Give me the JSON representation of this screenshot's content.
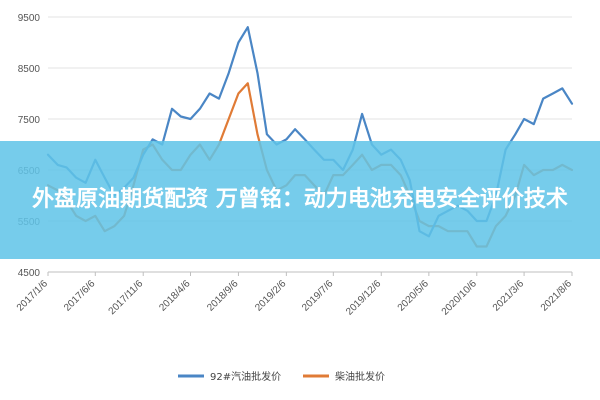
{
  "banner": {
    "title": "外盘原油期货配资 万曾铭：动力电池充电安全评价技术"
  },
  "chart_data": {
    "type": "line",
    "title": "",
    "xlabel": "",
    "ylabel": "",
    "ylim": [
      4500,
      9500
    ],
    "yticks": [
      4500,
      5500,
      6500,
      7500,
      8500,
      9500
    ],
    "x_tick_labels": [
      "2017/1/6",
      "2017/6/6",
      "2017/11/6",
      "2018/4/6",
      "2018/9/6",
      "2019/2/6",
      "2019/7/6",
      "2019/12/6",
      "2020/5/6",
      "2020/10/6",
      "2021/3/6",
      "2021/8/6"
    ],
    "grid": "horizontal",
    "legend_position": "bottom",
    "series": [
      {
        "name": "92#汽油批发价",
        "color": "#4a86c5",
        "points": [
          [
            "2017/1/6",
            6800
          ],
          [
            "2017/2/6",
            6600
          ],
          [
            "2017/3/6",
            6550
          ],
          [
            "2017/4/6",
            6350
          ],
          [
            "2017/5/6",
            6250
          ],
          [
            "2017/6/6",
            6700
          ],
          [
            "2017/7/6",
            6350
          ],
          [
            "2017/8/6",
            6000
          ],
          [
            "2017/9/6",
            6150
          ],
          [
            "2017/10/6",
            6350
          ],
          [
            "2017/11/6",
            6800
          ],
          [
            "2017/12/6",
            7100
          ],
          [
            "2018/1/6",
            7000
          ],
          [
            "2018/2/6",
            7700
          ],
          [
            "2018/3/6",
            7550
          ],
          [
            "2018/4/6",
            7500
          ],
          [
            "2018/5/6",
            7700
          ],
          [
            "2018/6/6",
            8000
          ],
          [
            "2018/7/6",
            7900
          ],
          [
            "2018/8/6",
            8400
          ],
          [
            "2018/9/6",
            9000
          ],
          [
            "2018/10/6",
            9300
          ],
          [
            "2018/11/6",
            8400
          ],
          [
            "2018/12/6",
            7200
          ],
          [
            "2019/1/6",
            7000
          ],
          [
            "2019/2/6",
            7100
          ],
          [
            "2019/3/6",
            7300
          ],
          [
            "2019/4/6",
            7100
          ],
          [
            "2019/5/6",
            6900
          ],
          [
            "2019/6/6",
            6700
          ],
          [
            "2019/7/6",
            6700
          ],
          [
            "2019/8/6",
            6500
          ],
          [
            "2019/9/6",
            6900
          ],
          [
            "2019/10/6",
            7600
          ],
          [
            "2019/11/6",
            7000
          ],
          [
            "2019/12/6",
            6800
          ],
          [
            "2020/1/6",
            6900
          ],
          [
            "2020/2/6",
            6700
          ],
          [
            "2020/3/6",
            6300
          ],
          [
            "2020/4/6",
            5300
          ],
          [
            "2020/5/6",
            5200
          ],
          [
            "2020/6/6",
            5600
          ],
          [
            "2020/7/6",
            5700
          ],
          [
            "2020/8/6",
            5800
          ],
          [
            "2020/9/6",
            5700
          ],
          [
            "2020/10/6",
            5500
          ],
          [
            "2020/11/6",
            5500
          ],
          [
            "2020/12/6",
            6000
          ],
          [
            "2021/1/6",
            6900
          ],
          [
            "2021/2/6",
            7200
          ],
          [
            "2021/3/6",
            7500
          ],
          [
            "2021/4/6",
            7400
          ],
          [
            "2021/5/6",
            7900
          ],
          [
            "2021/6/6",
            8000
          ],
          [
            "2021/7/6",
            8100
          ],
          [
            "2021/8/6",
            7800
          ]
        ]
      },
      {
        "name": "柴油批发价",
        "color": "#e07b36",
        "points": [
          [
            "2017/1/6",
            6200
          ],
          [
            "2017/2/6",
            6100
          ],
          [
            "2017/3/6",
            5900
          ],
          [
            "2017/4/6",
            5600
          ],
          [
            "2017/5/6",
            5500
          ],
          [
            "2017/6/6",
            5600
          ],
          [
            "2017/7/6",
            5300
          ],
          [
            "2017/8/6",
            5400
          ],
          [
            "2017/9/6",
            5600
          ],
          [
            "2017/10/6",
            6200
          ],
          [
            "2017/11/6",
            6900
          ],
          [
            "2017/12/6",
            7000
          ],
          [
            "2018/1/6",
            6700
          ],
          [
            "2018/2/6",
            6500
          ],
          [
            "2018/3/6",
            6500
          ],
          [
            "2018/4/6",
            6800
          ],
          [
            "2018/5/6",
            7000
          ],
          [
            "2018/6/6",
            6700
          ],
          [
            "2018/7/6",
            7000
          ],
          [
            "2018/8/6",
            7500
          ],
          [
            "2018/9/6",
            8000
          ],
          [
            "2018/10/6",
            8200
          ],
          [
            "2018/11/6",
            7200
          ],
          [
            "2018/12/6",
            6500
          ],
          [
            "2019/1/6",
            6100
          ],
          [
            "2019/2/6",
            6200
          ],
          [
            "2019/3/6",
            6400
          ],
          [
            "2019/4/6",
            6400
          ],
          [
            "2019/5/6",
            6200
          ],
          [
            "2019/6/6",
            6000
          ],
          [
            "2019/7/6",
            6400
          ],
          [
            "2019/8/6",
            6400
          ],
          [
            "2019/9/6",
            6600
          ],
          [
            "2019/10/6",
            6800
          ],
          [
            "2019/11/6",
            6500
          ],
          [
            "2019/12/6",
            6600
          ],
          [
            "2020/1/6",
            6600
          ],
          [
            "2020/2/6",
            6400
          ],
          [
            "2020/3/6",
            6000
          ],
          [
            "2020/4/6",
            5500
          ],
          [
            "2020/5/6",
            5400
          ],
          [
            "2020/6/6",
            5400
          ],
          [
            "2020/7/6",
            5300
          ],
          [
            "2020/8/6",
            5300
          ],
          [
            "2020/9/6",
            5300
          ],
          [
            "2020/10/6",
            5000
          ],
          [
            "2020/11/6",
            5000
          ],
          [
            "2020/12/6",
            5400
          ],
          [
            "2021/1/6",
            5600
          ],
          [
            "2021/2/6",
            6000
          ],
          [
            "2021/3/6",
            6600
          ],
          [
            "2021/4/6",
            6400
          ],
          [
            "2021/5/6",
            6500
          ],
          [
            "2021/6/6",
            6500
          ],
          [
            "2021/7/6",
            6600
          ],
          [
            "2021/8/6",
            6500
          ]
        ]
      }
    ]
  }
}
